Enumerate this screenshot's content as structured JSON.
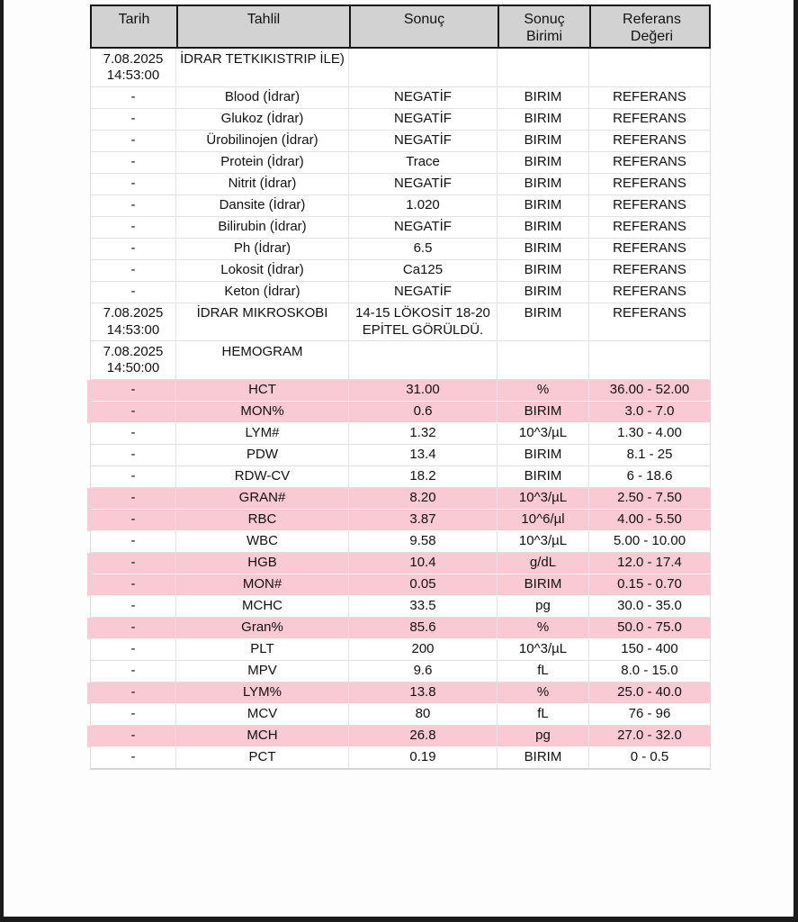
{
  "page": {
    "background_color": "#fdfdfd",
    "frame_color": "#1b1b1b",
    "highlight_color": "#f9c9d4",
    "header_bg_color": "#d2d2d2"
  },
  "table": {
    "header": {
      "labels": [
        "Tarih",
        "Tahlil",
        "Sonuç",
        "Sonuç Birimi",
        "Referans Değeri"
      ]
    },
    "columns": [
      "tarih",
      "tahlil",
      "sonuc",
      "birimi",
      "referans"
    ],
    "rows": [
      {
        "tarih": "7.08.2025 14:53:00",
        "tahlil": "İDRAR TETKIKISTRIP İLE)",
        "sonuc": "",
        "birimi": "",
        "referans": "",
        "highlight": false
      },
      {
        "tarih": "-",
        "tahlil": "Blood (İdrar)",
        "sonuc": "NEGATİF",
        "birimi": "BIRIM",
        "referans": "REFERANS",
        "highlight": false
      },
      {
        "tarih": "-",
        "tahlil": "Glukoz (İdrar)",
        "sonuc": "NEGATİF",
        "birimi": "BIRIM",
        "referans": "REFERANS",
        "highlight": false
      },
      {
        "tarih": "-",
        "tahlil": "Ürobilinojen (İdrar)",
        "sonuc": "NEGATİF",
        "birimi": "BIRIM",
        "referans": "REFERANS",
        "highlight": false
      },
      {
        "tarih": "-",
        "tahlil": "Protein (İdrar)",
        "sonuc": "Trace",
        "birimi": "BIRIM",
        "referans": "REFERANS",
        "highlight": false
      },
      {
        "tarih": "-",
        "tahlil": "Nitrit (İdrar)",
        "sonuc": "NEGATİF",
        "birimi": "BIRIM",
        "referans": "REFERANS",
        "highlight": false
      },
      {
        "tarih": "-",
        "tahlil": "Dansite (İdrar)",
        "sonuc": "1.020",
        "birimi": "BIRIM",
        "referans": "REFERANS",
        "highlight": false
      },
      {
        "tarih": "-",
        "tahlil": "Bilirubin (İdrar)",
        "sonuc": "NEGATİF",
        "birimi": "BIRIM",
        "referans": "REFERANS",
        "highlight": false
      },
      {
        "tarih": "-",
        "tahlil": "Ph (İdrar)",
        "sonuc": "6.5",
        "birimi": "BIRIM",
        "referans": "REFERANS",
        "highlight": false
      },
      {
        "tarih": "-",
        "tahlil": "Lokosit (İdrar)",
        "sonuc": "Ca125",
        "birimi": "BIRIM",
        "referans": "REFERANS",
        "highlight": false
      },
      {
        "tarih": "-",
        "tahlil": "Keton (İdrar)",
        "sonuc": "NEGATİF",
        "birimi": "BIRIM",
        "referans": "REFERANS",
        "highlight": false
      },
      {
        "tarih": "7.08.2025 14:53:00",
        "tahlil": "İDRAR MIKROSKOBI",
        "sonuc": "14-15 LÖKOSİT 18-20 EPİTEL GÖRÜLDÜ.",
        "birimi": "BIRIM",
        "referans": "REFERANS",
        "highlight": false
      },
      {
        "tarih": "7.08.2025 14:50:00",
        "tahlil": "HEMOGRAM",
        "sonuc": "",
        "birimi": "",
        "referans": "",
        "highlight": false
      },
      {
        "tarih": "-",
        "tahlil": "HCT",
        "sonuc": "31.00",
        "birimi": "%",
        "referans": "36.00 - 52.00",
        "highlight": true
      },
      {
        "tarih": "-",
        "tahlil": "MON%",
        "sonuc": "0.6",
        "birimi": "BIRIM",
        "referans": "3.0 - 7.0",
        "highlight": true
      },
      {
        "tarih": "-",
        "tahlil": "LYM#",
        "sonuc": "1.32",
        "birimi": "10^3/µL",
        "referans": "1.30 - 4.00",
        "highlight": false
      },
      {
        "tarih": "-",
        "tahlil": "PDW",
        "sonuc": "13.4",
        "birimi": "BIRIM",
        "referans": "8.1 - 25",
        "highlight": false
      },
      {
        "tarih": "-",
        "tahlil": "RDW-CV",
        "sonuc": "18.2",
        "birimi": "BIRIM",
        "referans": "6 - 18.6",
        "highlight": false
      },
      {
        "tarih": "-",
        "tahlil": "GRAN#",
        "sonuc": "8.20",
        "birimi": "10^3/µL",
        "referans": "2.50 - 7.50",
        "highlight": true
      },
      {
        "tarih": "-",
        "tahlil": "RBC",
        "sonuc": "3.87",
        "birimi": "10^6/µl",
        "referans": "4.00 - 5.50",
        "highlight": true
      },
      {
        "tarih": "-",
        "tahlil": "WBC",
        "sonuc": "9.58",
        "birimi": "10^3/µL",
        "referans": "5.00 - 10.00",
        "highlight": false
      },
      {
        "tarih": "-",
        "tahlil": "HGB",
        "sonuc": "10.4",
        "birimi": "g/dL",
        "referans": "12.0 - 17.4",
        "highlight": true
      },
      {
        "tarih": "-",
        "tahlil": "MON#",
        "sonuc": "0.05",
        "birimi": "BIRIM",
        "referans": "0.15 - 0.70",
        "highlight": true
      },
      {
        "tarih": "-",
        "tahlil": "MCHC",
        "sonuc": "33.5",
        "birimi": "pg",
        "referans": "30.0 - 35.0",
        "highlight": false
      },
      {
        "tarih": "-",
        "tahlil": "Gran%",
        "sonuc": "85.6",
        "birimi": "%",
        "referans": "50.0 - 75.0",
        "highlight": true
      },
      {
        "tarih": "-",
        "tahlil": "PLT",
        "sonuc": "200",
        "birimi": "10^3/µL",
        "referans": "150 - 400",
        "highlight": false
      },
      {
        "tarih": "-",
        "tahlil": "MPV",
        "sonuc": "9.6",
        "birimi": "fL",
        "referans": "8.0 - 15.0",
        "highlight": false
      },
      {
        "tarih": "-",
        "tahlil": "LYM%",
        "sonuc": "13.8",
        "birimi": "%",
        "referans": "25.0 - 40.0",
        "highlight": true
      },
      {
        "tarih": "-",
        "tahlil": "MCV",
        "sonuc": "80",
        "birimi": "fL",
        "referans": "76 - 96",
        "highlight": false
      },
      {
        "tarih": "-",
        "tahlil": "MCH",
        "sonuc": "26.8",
        "birimi": "pg",
        "referans": "27.0 - 32.0",
        "highlight": true
      },
      {
        "tarih": "-",
        "tahlil": "PCT",
        "sonuc": "0.19",
        "birimi": "BIRIM",
        "referans": "0 - 0.5",
        "highlight": false
      }
    ]
  }
}
